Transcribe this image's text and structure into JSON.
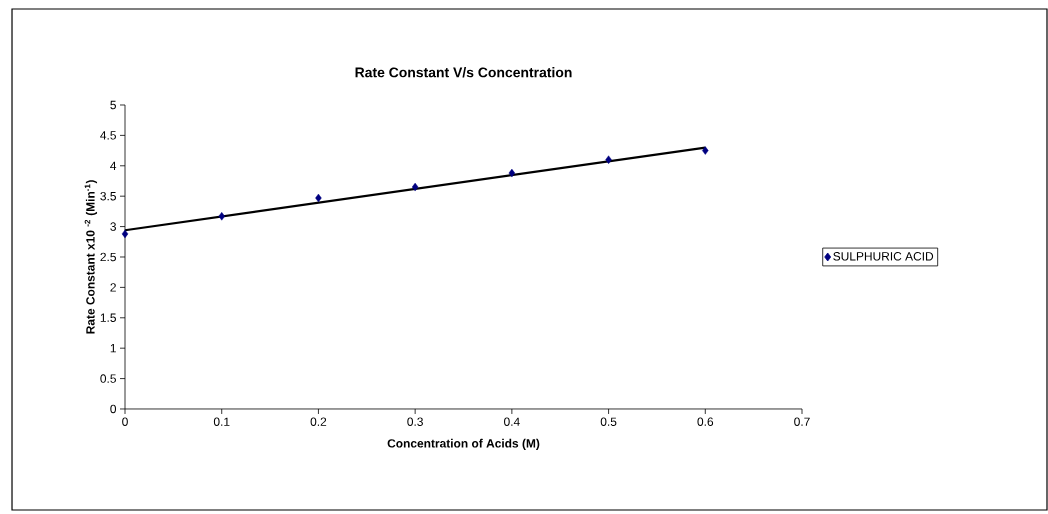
{
  "chart_data": {
    "type": "scatter",
    "title": "Rate Constant V/s Concentration",
    "xlabel": "Concentration of Acids (M)",
    "ylabel": "Rate Constant x10 $^{-2}$ (Min$^{-1}$)",
    "x": [
      0,
      0.1,
      0.2,
      0.3,
      0.4,
      0.5,
      0.6
    ],
    "series": [
      {
        "name": "SULPHURIC ACID",
        "color": "#000080",
        "values": [
          2.88,
          3.17,
          3.47,
          3.65,
          3.88,
          4.1,
          4.25
        ],
        "marker": "diamond"
      },
      {
        "type": "line",
        "color": "#000000",
        "x": [
          0,
          0.6
        ],
        "values": [
          2.94,
          4.3
        ]
      }
    ],
    "xlim": [
      0,
      0.7
    ],
    "xticks": [
      0,
      0.1,
      0.2,
      0.3,
      0.4,
      0.5,
      0.6,
      0.7
    ],
    "ylim": [
      0,
      5
    ],
    "yticks": [
      0,
      0.5,
      1,
      1.5,
      2,
      2.5,
      3,
      3.5,
      4,
      4.5,
      5
    ],
    "grid": false,
    "legend": "right"
  }
}
